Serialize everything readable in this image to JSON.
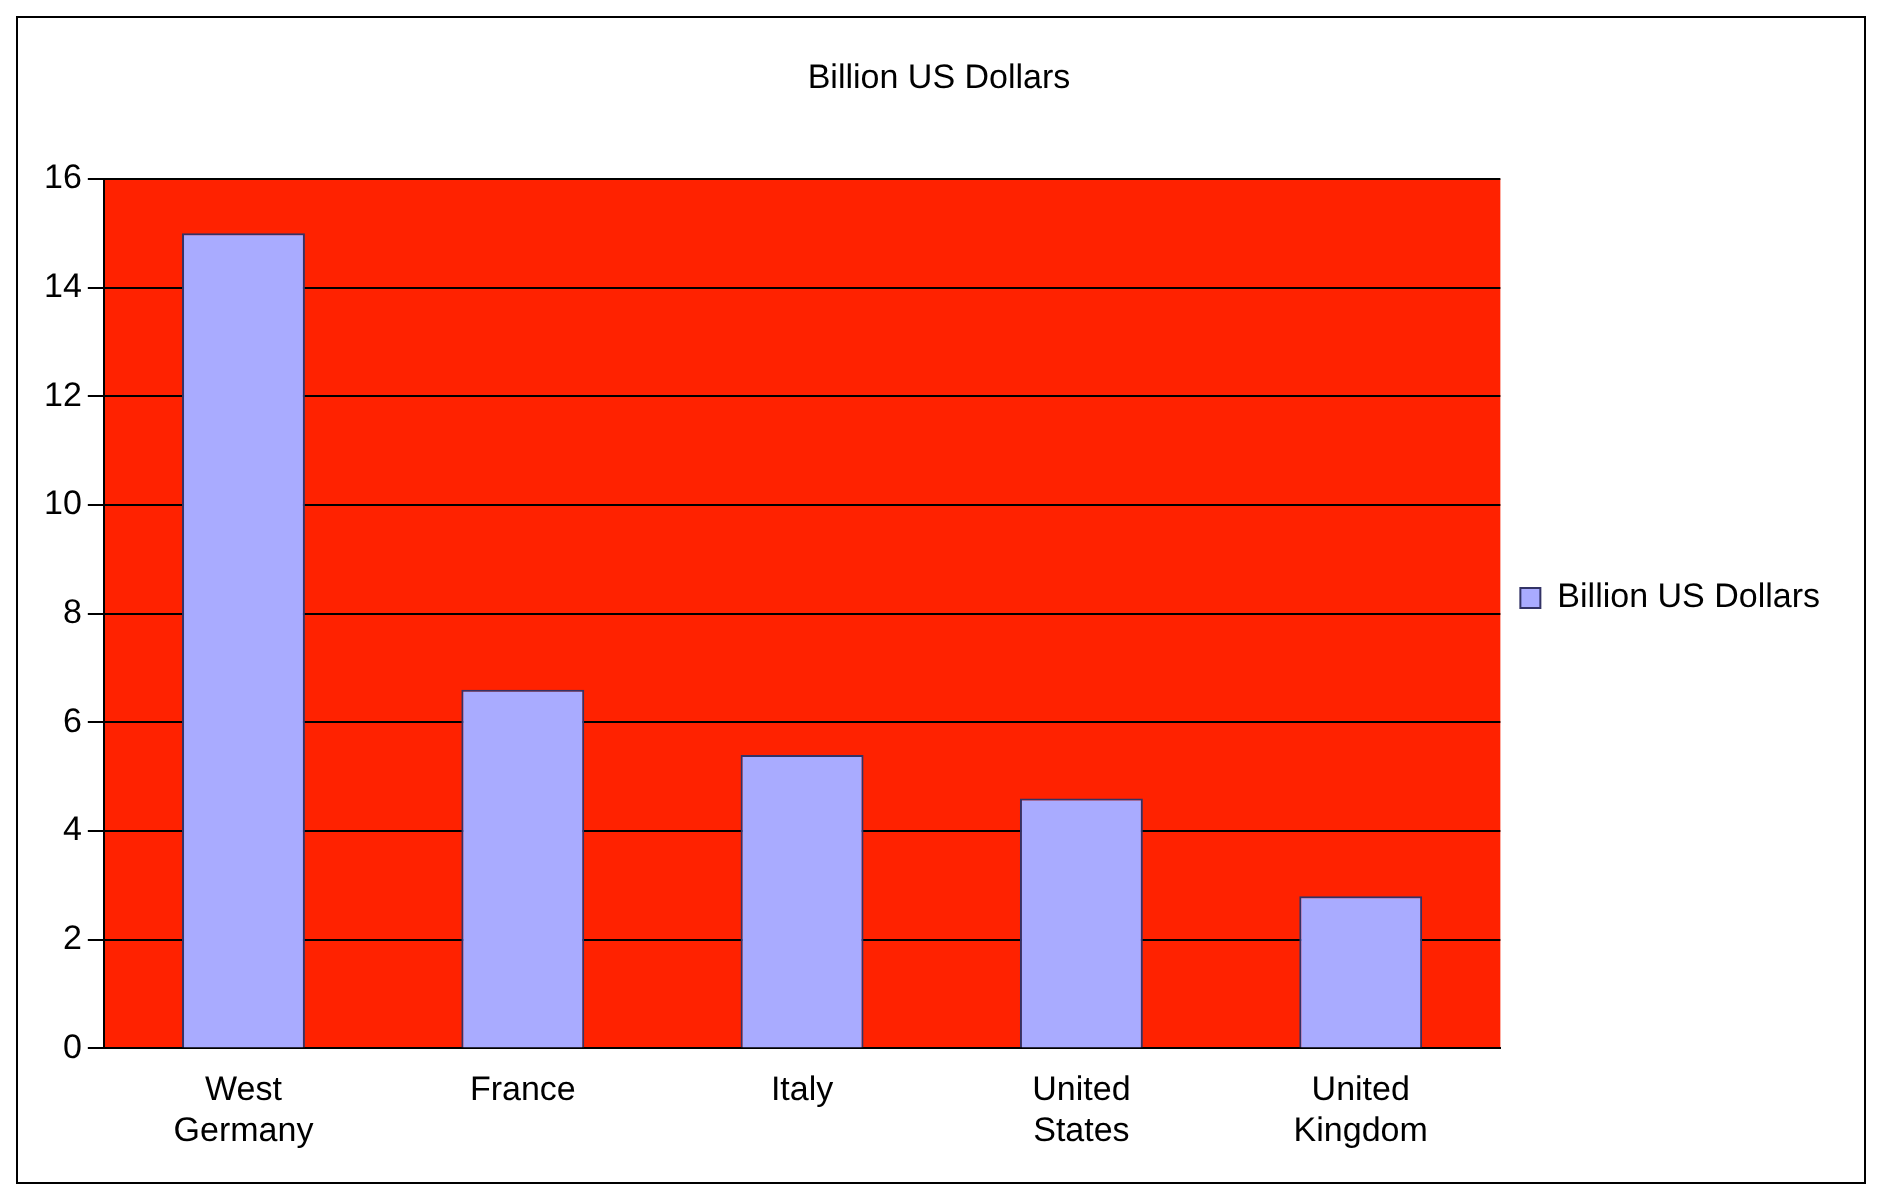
{
  "chart_data": {
    "type": "bar",
    "title": "Billion US Dollars",
    "categories": [
      "West Germany",
      "France",
      "Italy",
      "United States",
      "United Kingdom"
    ],
    "series": [
      {
        "name": "Billion US Dollars",
        "color": "#a9abff",
        "values": [
          15,
          6.6,
          5.4,
          4.6,
          2.8
        ]
      }
    ],
    "ylim": [
      0,
      16
    ],
    "yticks": [
      0,
      2,
      4,
      6,
      8,
      10,
      12,
      14,
      16
    ],
    "grid": "y",
    "legend": "right"
  }
}
